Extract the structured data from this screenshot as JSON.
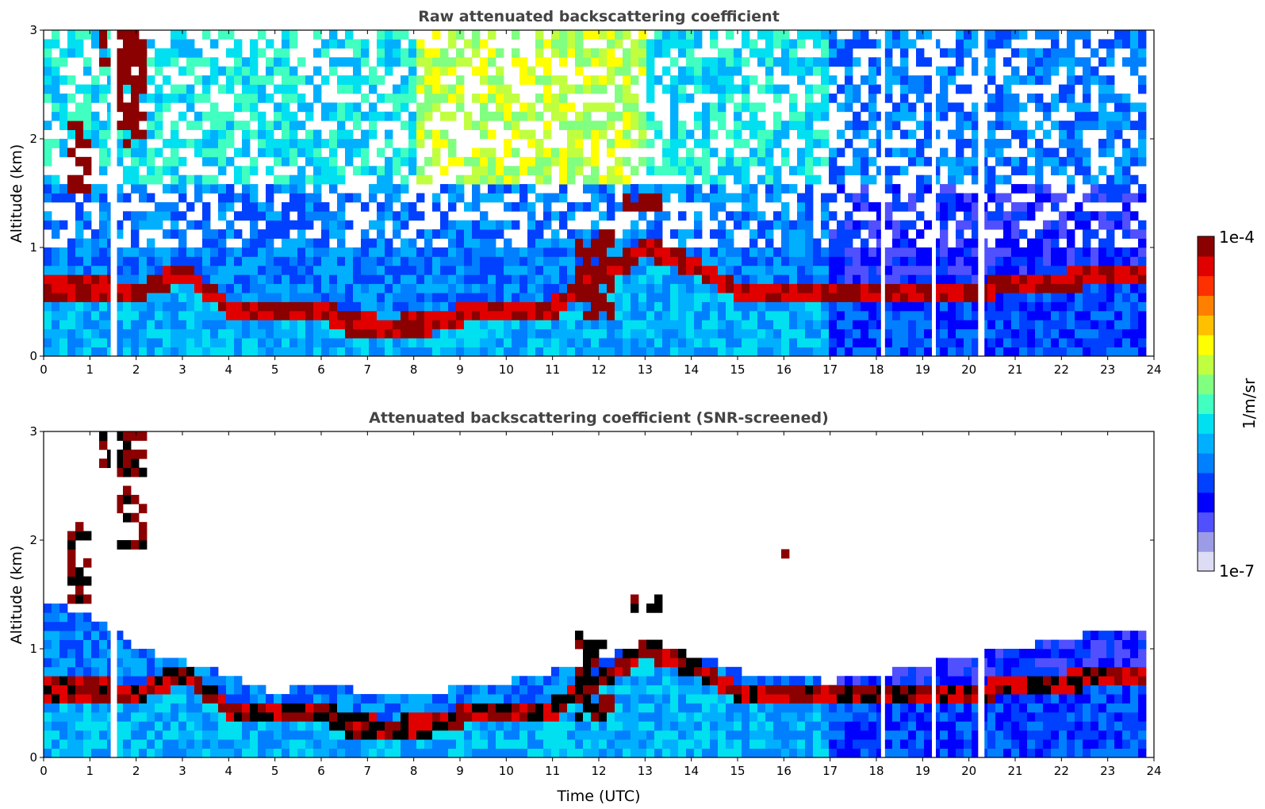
{
  "chart_data": [
    {
      "type": "heatmap",
      "panel": "top",
      "title": "Raw attenuated backscattering coefficient",
      "xlabel": "",
      "ylabel": "Altitude (km)",
      "xlim": [
        0,
        24
      ],
      "ylim": [
        0,
        3
      ],
      "xticks": [
        "0",
        "1",
        "2",
        "3",
        "4",
        "5",
        "6",
        "7",
        "8",
        "9",
        "10",
        "11",
        "12",
        "13",
        "14",
        "15",
        "16",
        "17",
        "18",
        "19",
        "20",
        "21",
        "22",
        "23",
        "24"
      ],
      "yticks": [
        "0",
        "1",
        "2",
        "3"
      ],
      "data_end_time": 23.8,
      "features": {
        "boundary_layer_top_km": [
          [
            0,
            0.62
          ],
          [
            1.5,
            0.62
          ],
          [
            2,
            0.58
          ],
          [
            3,
            0.78
          ],
          [
            4,
            0.45
          ],
          [
            5,
            0.4
          ],
          [
            6,
            0.45
          ],
          [
            6.5,
            0.3
          ],
          [
            7.5,
            0.28
          ],
          [
            8.5,
            0.3
          ],
          [
            9,
            0.38
          ],
          [
            10,
            0.4
          ],
          [
            11,
            0.45
          ],
          [
            12,
            0.7
          ],
          [
            13,
            1.0
          ],
          [
            14,
            0.85
          ],
          [
            15,
            0.6
          ],
          [
            15.5,
            0.55
          ],
          [
            16,
            0.55
          ],
          [
            16.5,
            0.62
          ],
          [
            17,
            0.55
          ],
          [
            18,
            0.55
          ],
          [
            20,
            0.6
          ],
          [
            22,
            0.7
          ],
          [
            23.8,
            0.75
          ]
        ],
        "cloud_layers": [
          {
            "t0": 1.5,
            "t1": 2.2,
            "z0": 1.9,
            "z1": 3.0
          },
          {
            "t0": 0.5,
            "t1": 1.0,
            "z0": 1.4,
            "z1": 2.2
          },
          {
            "t0": 1.2,
            "t1": 1.6,
            "z0": 2.7,
            "z1": 3.0
          },
          {
            "t0": 11.5,
            "t1": 12.4,
            "z0": 0.3,
            "z1": 1.2
          },
          {
            "t0": 12.6,
            "t1": 13.3,
            "z0": 1.3,
            "z1": 1.5
          },
          {
            "t0": 15.9,
            "t1": 16.2,
            "z0": 1.8,
            "z1": 1.95
          }
        ],
        "missing_profiles": [
          1.45,
          1.5,
          18.1,
          19.2,
          20.2,
          20.25
        ]
      }
    },
    {
      "type": "heatmap",
      "panel": "bottom",
      "title": "Attenuated backscattering coefficient (SNR-screened)",
      "xlabel": "Time (UTC)",
      "ylabel": "Altitude (km)",
      "xlim": [
        0,
        24
      ],
      "ylim": [
        0,
        3
      ],
      "xticks": [
        "0",
        "1",
        "2",
        "3",
        "4",
        "5",
        "6",
        "7",
        "8",
        "9",
        "10",
        "11",
        "12",
        "13",
        "14",
        "15",
        "16",
        "17",
        "18",
        "19",
        "20",
        "21",
        "22",
        "23",
        "24"
      ],
      "yticks": [
        "0",
        "1",
        "2",
        "3"
      ],
      "data_end_time": 23.8,
      "screened_top_km": [
        [
          0,
          1.45
        ],
        [
          1.5,
          1.2
        ],
        [
          2,
          1.0
        ],
        [
          3,
          0.9
        ],
        [
          4,
          0.75
        ],
        [
          5,
          0.6
        ],
        [
          6,
          0.7
        ],
        [
          7,
          0.6
        ],
        [
          8,
          0.55
        ],
        [
          9,
          0.65
        ],
        [
          10,
          0.7
        ],
        [
          11,
          0.8
        ],
        [
          12,
          0.9
        ],
        [
          13,
          1.05
        ],
        [
          14,
          0.95
        ],
        [
          15,
          0.8
        ],
        [
          16,
          0.75
        ],
        [
          17,
          0.7
        ],
        [
          18,
          0.75
        ],
        [
          19,
          0.85
        ],
        [
          20,
          0.95
        ],
        [
          21,
          1.0
        ],
        [
          22,
          1.1
        ],
        [
          23,
          1.15
        ],
        [
          23.8,
          1.2
        ]
      ]
    }
  ],
  "colorbar": {
    "label": "1/m/sr",
    "max_label": "1e-4",
    "min_label": "1e-7",
    "colors": [
      "#dcdcf5",
      "#9b9be6",
      "#5050ff",
      "#0000ff",
      "#0040ff",
      "#0080ff",
      "#00b0ff",
      "#00e0f0",
      "#40ffc0",
      "#80ff80",
      "#c0ff40",
      "#ffff00",
      "#ffc000",
      "#ff8000",
      "#ff3000",
      "#e00000",
      "#8b0000"
    ]
  }
}
